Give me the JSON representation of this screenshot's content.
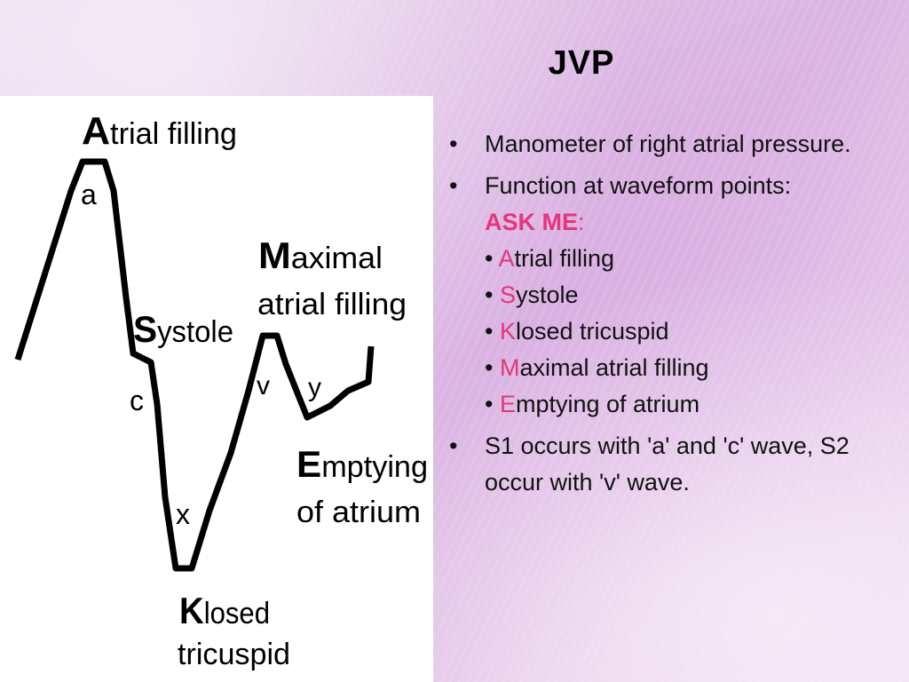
{
  "slide": {
    "title": "JVP"
  },
  "diagram": {
    "labels": {
      "atrial_filling_initial": "A",
      "atrial_filling_rest": "trial filling",
      "a_wave": "a",
      "systole_initial": "S",
      "systole_rest": "ystole",
      "c_wave": "c",
      "x_descent": "x",
      "closed_initial": "K",
      "closed_rest": "losed",
      "closed_line2": "tricuspid",
      "maximal_initial": "M",
      "maximal_rest": "aximal",
      "maximal_line2": "atrial filling",
      "v_wave": "v",
      "y_descent": "y",
      "emptying_initial": "E",
      "emptying_rest": "mptying",
      "emptying_line2": "of atrium"
    },
    "waveform": [
      [
        20,
        405
      ],
      [
        50,
        310
      ],
      [
        80,
        215
      ],
      [
        93,
        182
      ],
      [
        118,
        182
      ],
      [
        128,
        215
      ],
      [
        142,
        335
      ],
      [
        150,
        398
      ],
      [
        170,
        408
      ],
      [
        177,
        455
      ],
      [
        186,
        560
      ],
      [
        198,
        640
      ],
      [
        216,
        640
      ],
      [
        236,
        575
      ],
      [
        260,
        510
      ],
      [
        280,
        440
      ],
      [
        296,
        378
      ],
      [
        312,
        378
      ],
      [
        322,
        410
      ],
      [
        346,
        470
      ],
      [
        372,
        457
      ],
      [
        392,
        440
      ],
      [
        415,
        430
      ],
      [
        418,
        390
      ]
    ]
  },
  "bullets": {
    "b1": "Manometer of right atrial pressure.",
    "b2_text": "Function at waveform points:",
    "b2_askme": "ASK ME",
    "b2_colon": ":",
    "sub1_initial": "A",
    "sub1_rest": "trial filling",
    "sub2_initial": "S",
    "sub2_rest": "ystole",
    "sub3_initial": "K",
    "sub3_rest": "losed tricuspid",
    "sub4_initial": "M",
    "sub4_rest": "aximal atrial filling",
    "sub5_initial": "E",
    "sub5_rest": "mptying of atrium",
    "b3": "S1 occurs with 'a' and 'c' wave, S2 occur with 'v' wave."
  },
  "colors": {
    "accent_pink": "#e6357a",
    "text": "#111111",
    "diagram_bg": "#ffffff"
  }
}
